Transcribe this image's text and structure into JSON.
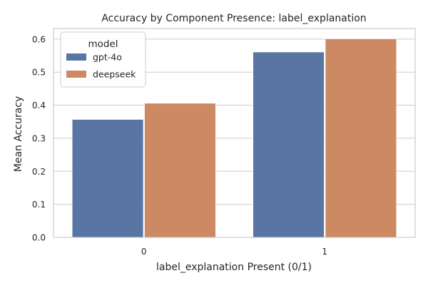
{
  "chart_data": {
    "type": "bar",
    "title": "Accuracy by Component Presence: label_explanation",
    "xlabel": "label_explanation Present (0/1)",
    "ylabel": "Mean Accuracy",
    "categories": [
      "0",
      "1"
    ],
    "series": [
      {
        "name": "gpt-4o",
        "values": [
          0.357,
          0.561
        ],
        "color": "#5875A4"
      },
      {
        "name": "deepseek",
        "values": [
          0.406,
          0.601
        ],
        "color": "#CC8963"
      }
    ],
    "ylim": [
      0,
      0.632
    ],
    "yticks": [
      0.0,
      0.1,
      0.2,
      0.3,
      0.4,
      0.5,
      0.6
    ],
    "ytick_labels": [
      "0.0",
      "0.1",
      "0.2",
      "0.3",
      "0.4",
      "0.5",
      "0.6"
    ],
    "grid": true,
    "legend": {
      "title": "model",
      "placement": "top-left"
    },
    "colors": {
      "grid": "#CCCCCC",
      "frame": "#CCCCCC",
      "background": "#FFFFFF"
    }
  }
}
